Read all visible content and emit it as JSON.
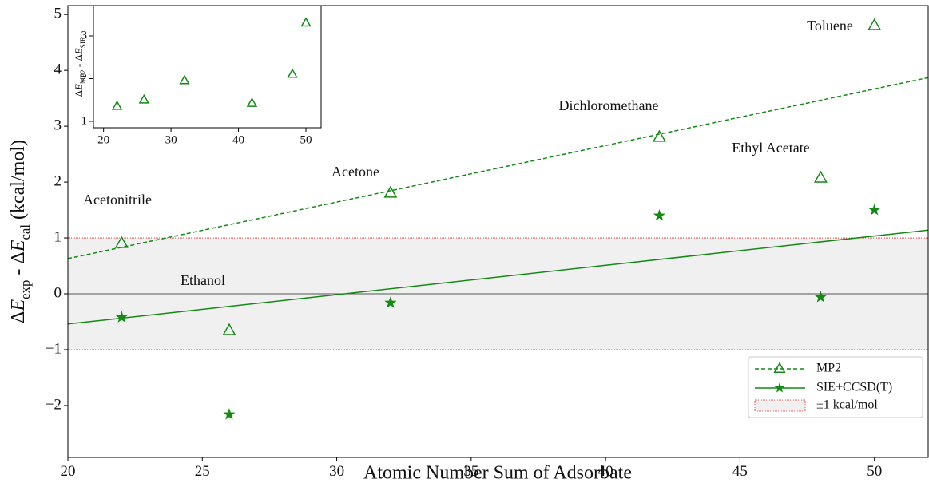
{
  "chart_data": [
    {
      "type": "scatter",
      "xlabel": "Atomic Number Sum of Adsorbate",
      "ylabel_parts": [
        "Δ",
        "E",
        "exp",
        " - Δ",
        "E",
        "cal",
        " (kcal/mol)"
      ],
      "xlim": [
        20,
        52
      ],
      "ylim": [
        -2.93,
        5.16
      ],
      "xticks": [
        20,
        25,
        30,
        35,
        40,
        45,
        50
      ],
      "yticks": [
        {
          "value": -2,
          "label": "−2"
        },
        {
          "value": -1,
          "label": "−1"
        },
        0,
        1,
        2,
        3,
        4,
        5
      ],
      "reference_line": 0,
      "band": {
        "range": [
          -1,
          1
        ],
        "label": "±1 kcal/mol",
        "color": "#f0f0f0",
        "edge": "#e03030"
      },
      "series": [
        {
          "name": "MP2",
          "color": "#138a13",
          "marker": "triangle",
          "dash": true,
          "x": [
            22,
            26,
            32,
            42,
            48,
            50
          ],
          "values": [
            0.9,
            -0.66,
            1.8,
            2.8,
            2.07,
            4.8
          ],
          "fit": {
            "x": [
              20,
              52
            ],
            "values": [
              0.63,
              3.87
            ]
          }
        },
        {
          "name": "SIE+CCSD(T)",
          "color": "#138a13",
          "marker": "star",
          "dash": false,
          "x": [
            22,
            26,
            32,
            42,
            48,
            50
          ],
          "values": [
            -0.42,
            -2.16,
            -0.16,
            1.4,
            -0.06,
            1.5
          ],
          "fit": {
            "x": [
              20,
              52
            ],
            "values": [
              -0.54,
              1.14
            ]
          }
        }
      ],
      "annotations": [
        "Acetonitrile",
        "Ethanol",
        "Acetone",
        "Dichloromethane",
        "Ethyl Acetate",
        "Toluene"
      ]
    },
    {
      "type": "scatter",
      "ylabel_parts": [
        "Δ",
        "E",
        "MP2",
        " - Δ",
        "E",
        "SIE"
      ],
      "xlim": [
        18.5,
        52.25
      ],
      "ylim": [
        0.85,
        3.71
      ],
      "xticks": [
        20,
        30,
        40,
        50
      ],
      "yticks": [
        1,
        2,
        3
      ],
      "series": [
        {
          "color": "#138a13",
          "marker": "triangle",
          "x": [
            22,
            26,
            32,
            42,
            48,
            50
          ],
          "values": [
            1.35,
            1.5,
            1.95,
            1.42,
            2.1,
            3.3
          ]
        }
      ]
    }
  ]
}
